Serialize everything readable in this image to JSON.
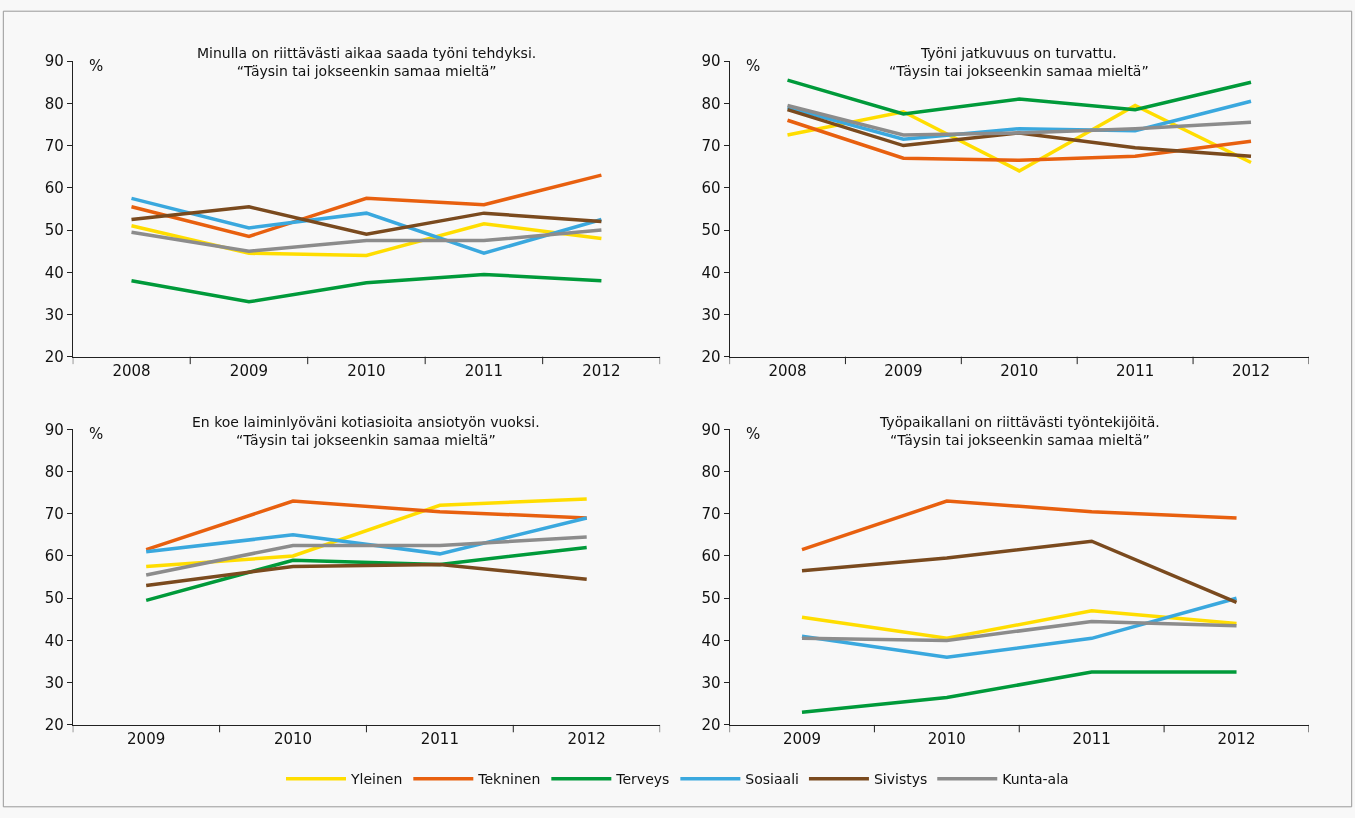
{
  "chart_data": [
    {
      "type": "line",
      "title": "Minulla on riittävästi aikaa saada työni tehdyksi.",
      "subtitle": "“Täysin tai jokseenkin samaa mieltä”",
      "ylabel": "%",
      "categories": [
        "2008",
        "2009",
        "2010",
        "2011",
        "2012"
      ],
      "ylim": [
        20,
        90
      ],
      "yticks": [
        20,
        30,
        40,
        50,
        60,
        70,
        80,
        90
      ],
      "grid": false,
      "legend": "bottom",
      "series": [
        {
          "name": "Yleinen",
          "color": "#ffdd00",
          "values": [
            51,
            44.5,
            44,
            51.5,
            48
          ]
        },
        {
          "name": "Tekninen",
          "color": "#e8600f",
          "values": [
            55.5,
            48.5,
            57.5,
            56,
            63
          ]
        },
        {
          "name": "Terveys",
          "color": "#009a3a",
          "values": [
            38,
            33,
            37.5,
            39.5,
            38
          ]
        },
        {
          "name": "Sosiaali",
          "color": "#3aa8de",
          "values": [
            57.5,
            50.5,
            54,
            44.5,
            52.5
          ]
        },
        {
          "name": "Sivistys",
          "color": "#7a4a1e",
          "values": [
            52.5,
            55.5,
            49,
            54,
            52
          ]
        },
        {
          "name": "Kunta-ala",
          "color": "#8c8c8c",
          "values": [
            49.5,
            45,
            47.5,
            47.5,
            50
          ]
        }
      ]
    },
    {
      "type": "line",
      "title": "Työni jatkuvuus on turvattu.",
      "subtitle": "“Täysin tai jokseenkin samaa mieltä”",
      "ylabel": "%",
      "categories": [
        "2008",
        "2009",
        "2010",
        "2011",
        "2012"
      ],
      "ylim": [
        20,
        90
      ],
      "yticks": [
        20,
        30,
        40,
        50,
        60,
        70,
        80,
        90
      ],
      "grid": false,
      "series": [
        {
          "name": "Yleinen",
          "color": "#ffdd00",
          "values": [
            72.5,
            78,
            64,
            79.5,
            66
          ]
        },
        {
          "name": "Tekninen",
          "color": "#e8600f",
          "values": [
            76,
            67,
            66.5,
            67.5,
            71
          ]
        },
        {
          "name": "Terveys",
          "color": "#009a3a",
          "values": [
            85.5,
            77.5,
            81,
            78.5,
            85
          ]
        },
        {
          "name": "Sosiaali",
          "color": "#3aa8de",
          "values": [
            79,
            71.5,
            74,
            73.5,
            80.5
          ]
        },
        {
          "name": "Sivistys",
          "color": "#7a4a1e",
          "values": [
            78.5,
            70,
            73,
            69.5,
            67.5
          ]
        },
        {
          "name": "Kunta-ala",
          "color": "#8c8c8c",
          "values": [
            79.5,
            72.5,
            73,
            74,
            75.5
          ]
        }
      ]
    },
    {
      "type": "line",
      "title": "En koe laiminlyöväni kotiasioita ansiotyön vuoksi.",
      "subtitle": "“Täysin tai jokseenkin samaa mieltä”",
      "ylabel": "%",
      "categories": [
        "2009",
        "2010",
        "2011",
        "2012"
      ],
      "ylim": [
        20,
        90
      ],
      "yticks": [
        20,
        30,
        40,
        50,
        60,
        70,
        80,
        90
      ],
      "grid": false,
      "series": [
        {
          "name": "Yleinen",
          "color": "#ffdd00",
          "values": [
            57.5,
            60,
            72,
            73.5
          ]
        },
        {
          "name": "Tekninen",
          "color": "#e8600f",
          "values": [
            61.5,
            73,
            70.5,
            69
          ]
        },
        {
          "name": "Terveys",
          "color": "#009a3a",
          "values": [
            49.5,
            59,
            58,
            62
          ]
        },
        {
          "name": "Sosiaali",
          "color": "#3aa8de",
          "values": [
            61,
            65,
            60.5,
            69
          ]
        },
        {
          "name": "Sivistys",
          "color": "#7a4a1e",
          "values": [
            53,
            57.5,
            58,
            54.5
          ]
        },
        {
          "name": "Kunta-ala",
          "color": "#8c8c8c",
          "values": [
            55.5,
            62.5,
            62.5,
            64.5
          ]
        }
      ]
    },
    {
      "type": "line",
      "title": "Työpaikallani on riittävästi työntekijöitä.",
      "subtitle": "“Täysin tai jokseenkin samaa mieltä”",
      "ylabel": "%",
      "categories": [
        "2009",
        "2010",
        "2011",
        "2012"
      ],
      "ylim": [
        20,
        90
      ],
      "yticks": [
        20,
        30,
        40,
        50,
        60,
        70,
        80,
        90
      ],
      "grid": false,
      "series": [
        {
          "name": "Yleinen",
          "color": "#ffdd00",
          "values": [
            45.5,
            40.5,
            47,
            44
          ]
        },
        {
          "name": "Tekninen",
          "color": "#e8600f",
          "values": [
            61.5,
            73,
            70.5,
            69
          ]
        },
        {
          "name": "Terveys",
          "color": "#009a3a",
          "values": [
            23,
            26.5,
            32.5,
            32.5
          ]
        },
        {
          "name": "Sosiaali",
          "color": "#3aa8de",
          "values": [
            41,
            36,
            40.5,
            50
          ]
        },
        {
          "name": "Sivistys",
          "color": "#7a4a1e",
          "values": [
            56.5,
            59.5,
            63.5,
            49
          ]
        },
        {
          "name": "Kunta-ala",
          "color": "#8c8c8c",
          "values": [
            40.5,
            40,
            44.5,
            43.5
          ]
        }
      ]
    }
  ]
}
